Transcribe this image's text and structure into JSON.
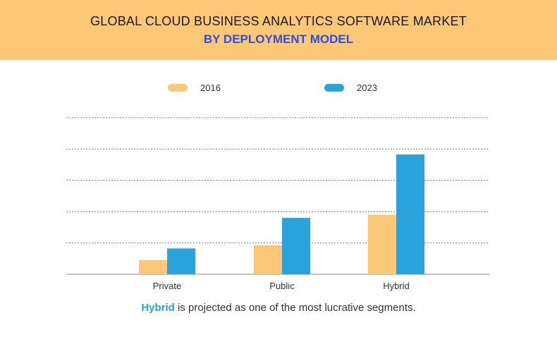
{
  "header": {
    "title": "GLOBAL CLOUD BUSINESS ANALYTICS SOFTWARE MARKET",
    "subtitle": "BY DEPLOYMENT MODEL",
    "background_color": "#fcc777",
    "subtitle_color": "#2f4fd6"
  },
  "legend": [
    {
      "label": "2016",
      "color": "#fcc777"
    },
    {
      "label": "2023",
      "color": "#2aa3dc"
    }
  ],
  "chart_data": {
    "type": "bar",
    "categories": [
      "Private",
      "Public",
      "Hybrid"
    ],
    "series": [
      {
        "name": "2016",
        "color": "#fcc777",
        "values": [
          0.9,
          1.85,
          3.8
        ]
      },
      {
        "name": "2023",
        "color": "#2aa3dc",
        "values": [
          1.65,
          3.6,
          7.65
        ]
      }
    ],
    "ylim": [
      0,
      10
    ],
    "grid": true,
    "grid_style": "dotted",
    "y_tick_labels_shown": false,
    "legend_position": "top"
  },
  "footnote": {
    "highlight": "Hybrid",
    "text": " is projected as one of the most lucrative segments."
  }
}
